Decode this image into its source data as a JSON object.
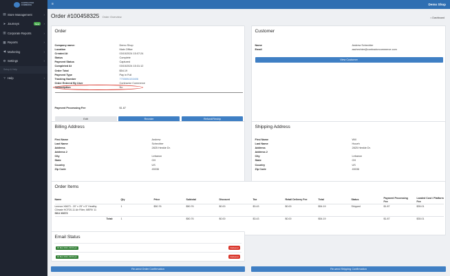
{
  "app": {
    "shop_name": "Demo Shop",
    "logo_text_1": "CONTRACTOR",
    "logo_text_2": "COMMERCE"
  },
  "sidebar": {
    "items": [
      {
        "label": "Store Management",
        "icon": "store-icon"
      },
      {
        "label": "Journeys",
        "icon": "journeys-icon",
        "badge": "New"
      },
      {
        "label": "Corporate Reports",
        "icon": "reports-icon"
      },
      {
        "label": "Reports",
        "icon": "chart-icon"
      },
      {
        "label": "Marketing",
        "icon": "megaphone-icon"
      },
      {
        "label": "Settings",
        "icon": "gear-icon"
      }
    ],
    "sub_item": "Setup & Help",
    "help": "Help"
  },
  "header": {
    "title": "Order #100458325",
    "subtitle": "Order Overview",
    "dashboard_link": "Dashboard"
  },
  "order": {
    "title": "Order",
    "fields": [
      {
        "label": "Company name:",
        "value": "Demo Shop"
      },
      {
        "label": "Location",
        "value": "Main Office"
      },
      {
        "label": "Created At",
        "value": "03/15/2024 15:07:24"
      },
      {
        "label": "Status",
        "value": "Complete"
      },
      {
        "label": "Payment Status",
        "value": "Captured"
      },
      {
        "label": "Completed At",
        "value": "03/15/2024 15:31:12"
      },
      {
        "label": "Order Total",
        "value": "$54.19"
      },
      {
        "label": "Payment Type",
        "value": "Pay in Full"
      },
      {
        "label": "Tracking Number",
        "value": "7700694153406"
      },
      {
        "label": "Order Entered By User",
        "value": "Contractor Commerce"
      },
      {
        "label": "Subscription",
        "value": "No"
      }
    ],
    "fee_label": "Payment Processing Fee",
    "fee_value": "$1.87",
    "buttons": {
      "edit": "Edit",
      "reorder": "Reorder",
      "refund": "Refund/Reship"
    }
  },
  "customer": {
    "title": "Customer",
    "fields": [
      {
        "label": "Name",
        "value": "Andrew Schechter"
      },
      {
        "label": "Email",
        "value": "aschechter@contractorcommerce.com"
      }
    ],
    "view_button": "View Customer"
  },
  "billing": {
    "title": "Billing Address",
    "fields": [
      {
        "label": "First Name",
        "value": "Andrew"
      },
      {
        "label": "Last Name",
        "value": "Schechter"
      },
      {
        "label": "Address",
        "value": "2825 Henkle Dr."
      },
      {
        "label": "Address 2",
        "value": ""
      },
      {
        "label": "City",
        "value": "Lebanon"
      },
      {
        "label": "State",
        "value": "OH"
      },
      {
        "label": "Country",
        "value": "US"
      },
      {
        "label": "Zip Code",
        "value": "45036"
      }
    ]
  },
  "shipping": {
    "title": "Shipping Address",
    "fields": [
      {
        "label": "First Name",
        "value": "Will"
      },
      {
        "label": "Last Name",
        "value": "Houeh"
      },
      {
        "label": "Address",
        "value": "2825 Henkle Dr."
      },
      {
        "label": "Address 2",
        "value": ""
      },
      {
        "label": "City",
        "value": "Lebanon"
      },
      {
        "label": "State",
        "value": "OH"
      },
      {
        "label": "Country",
        "value": "US"
      },
      {
        "label": "Zip Code",
        "value": "45036"
      }
    ]
  },
  "items": {
    "title": "Order Items",
    "columns": [
      "Name",
      "Qty",
      "Price",
      "Subtotal",
      "Discount",
      "Tax",
      "Retail Delivery Fee",
      "Total",
      "Status",
      "Payment Processing Fee",
      "Landed Cost / Platform Fee"
    ],
    "rows": [
      {
        "name_1": "Lennox X6673 - 20\" x 25\" x 5\" Healthy",
        "name_2": "Climate HCF20-11 Air Filter, MERV 11",
        "sku": "SKU X6673",
        "qty": "1",
        "price": "$50.76",
        "subtotal": "$50.76",
        "discount": "$0.00",
        "tax": "$3.43",
        "delivery": "$0.00",
        "total": "$54.19",
        "status": "Shipped",
        "proc_fee": "$1.87",
        "landed": "$35.01"
      }
    ],
    "totals": {
      "label": "Total:",
      "qty": "1",
      "subtotal": "$50.76",
      "discount": "$0.00",
      "tax": "$3.43",
      "delivery": "$0.00",
      "total": "$54.19",
      "proc_fee": "$1.87",
      "landed": "$35.01"
    }
  },
  "email_status": {
    "title": "Email Status",
    "rows": [
      {
        "date": "15 Mar 2024, 09:03 pm",
        "status": "Delivered"
      },
      {
        "date": "15 Mar 2024, 09:03 pm",
        "status": "Delivered"
      }
    ]
  },
  "footer_buttons": {
    "resend_order": "Re-send Order Confirmation",
    "resend_shipping": "Re-send Shipping Confirmation"
  },
  "colors": {
    "accent": "#3f7fc4",
    "topbar": "#2f6fb2",
    "sidebar": "#1f2430",
    "delivered": "#d9362b",
    "date_badge": "#2e7d32"
  }
}
